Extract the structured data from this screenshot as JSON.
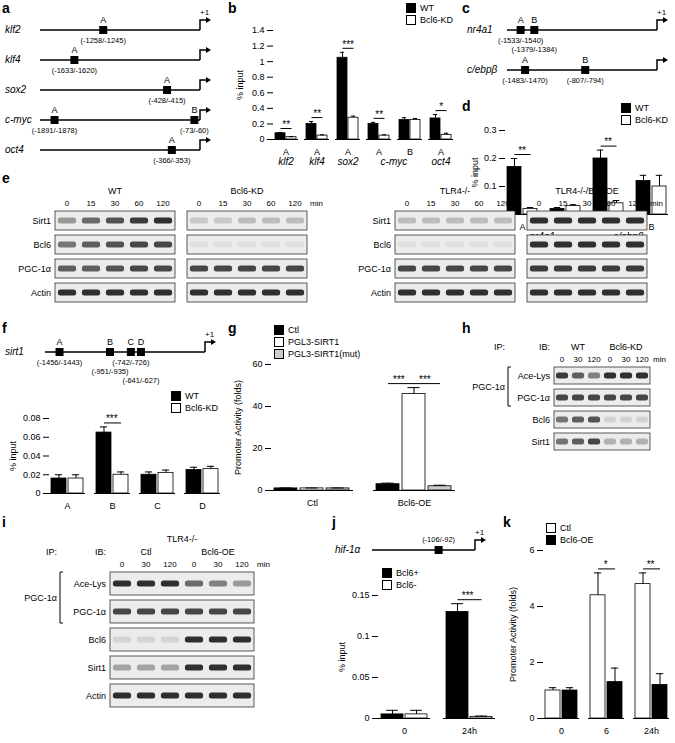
{
  "panel_labels": [
    "a",
    "b",
    "c",
    "d",
    "e",
    "f",
    "g",
    "h",
    "i",
    "j",
    "k"
  ],
  "chart_data": [
    {
      "type": "bar",
      "categories": [
        "A",
        "A",
        "A",
        "A",
        "B",
        "A"
      ],
      "category_groups": [
        {
          "label": "klf2",
          "from": 0,
          "to": 0
        },
        {
          "label": "klf4",
          "from": 1,
          "to": 1
        },
        {
          "label": "sox2",
          "from": 2,
          "to": 2
        },
        {
          "label": "c-myc",
          "from": 3,
          "to": 4
        },
        {
          "label": "oct4",
          "from": 5,
          "to": 5
        }
      ],
      "y_label": "% input",
      "ylim": [
        0,
        1.4
      ],
      "yticks": [
        0,
        0.2,
        0.4,
        0.6,
        0.8,
        1,
        1.2,
        1.4
      ],
      "series": [
        {
          "name": "WT",
          "color": "#000000",
          "values": [
            0.08,
            0.2,
            1.05,
            0.2,
            0.25,
            0.27
          ],
          "errors": [
            0.01,
            0.03,
            0.07,
            0.02,
            0.03,
            0.05
          ]
        },
        {
          "name": "Bcl6-KD",
          "color": "#ffffff",
          "values": [
            0.03,
            0.05,
            0.28,
            0.05,
            0.25,
            0.06
          ],
          "errors": [
            0.005,
            0.01,
            0.02,
            0.01,
            0.02,
            0.02
          ]
        }
      ],
      "significance": [
        {
          "category": 0,
          "from": 0,
          "to": 1,
          "label": "**"
        },
        {
          "category": 1,
          "from": 0,
          "to": 1,
          "label": "**"
        },
        {
          "category": 2,
          "from": 0,
          "to": 1,
          "label": "***"
        },
        {
          "category": 3,
          "from": 0,
          "to": 1,
          "label": "**"
        },
        {
          "category": 5,
          "from": 0,
          "to": 1,
          "label": "*"
        }
      ],
      "legend": "top-right"
    },
    {
      "type": "bar",
      "categories": [
        "A",
        "B",
        "A",
        "B"
      ],
      "category_groups": [
        {
          "label": "nr4a1",
          "from": 0,
          "to": 1
        },
        {
          "label": "c/ebpβ",
          "from": 2,
          "to": 3
        }
      ],
      "y_label": "% input",
      "ylim": [
        0,
        0.3
      ],
      "yticks": [
        {
          "value": 0,
          "label": ".0"
        },
        0.1,
        0.2,
        0.3
      ],
      "series": [
        {
          "name": "WT",
          "color": "#000000",
          "values": [
            0.17,
            0.02,
            0.2,
            0.12
          ],
          "errors": [
            0.03,
            0.005,
            0.03,
            0.02
          ]
        },
        {
          "name": "Bcl6-KD",
          "color": "#ffffff",
          "values": [
            0.02,
            0.03,
            0.04,
            0.1
          ],
          "errors": [
            0.005,
            0.005,
            0.01,
            0.04
          ]
        }
      ],
      "significance": [
        {
          "category": 0,
          "from": 0,
          "to": 1,
          "label": "**"
        },
        {
          "category": 2,
          "from": 0,
          "to": 1,
          "label": "**"
        }
      ],
      "legend": "top-right"
    },
    {
      "type": "bar",
      "categories": [
        "A",
        "B",
        "C",
        "D"
      ],
      "y_label": "% input",
      "ylim": [
        0,
        0.08
      ],
      "yticks": [
        0,
        0.02,
        0.04,
        0.06,
        0.08
      ],
      "series": [
        {
          "name": "WT",
          "color": "#000000",
          "values": [
            0.016,
            0.065,
            0.02,
            0.025
          ],
          "errors": [
            0.004,
            0.006,
            0.003,
            0.003
          ]
        },
        {
          "name": "Bcl6-KD",
          "color": "#ffffff",
          "values": [
            0.016,
            0.02,
            0.022,
            0.026
          ],
          "errors": [
            0.004,
            0.003,
            0.003,
            0.003
          ]
        }
      ],
      "significance": [
        {
          "category": 1,
          "from": 0,
          "to": 1,
          "label": "***"
        }
      ],
      "legend": "top-right"
    },
    {
      "type": "bar",
      "categories": [
        "Ctl",
        "Bcl6-OE"
      ],
      "y_label": "Promoter Activity (folds)",
      "ylim": [
        0,
        60
      ],
      "yticks": [
        0,
        20,
        40,
        60
      ],
      "series": [
        {
          "name": "Ctl",
          "color": "#000000",
          "values": [
            1,
            3
          ],
          "errors": [
            0.2,
            0.5
          ]
        },
        {
          "name": "PGL3-SIRT1",
          "color": "#ffffff",
          "values": [
            1,
            46
          ],
          "errors": [
            0.2,
            3
          ]
        },
        {
          "name": "PGL3-SIRT1(mut)",
          "color": "#cccccc",
          "values": [
            1,
            2
          ],
          "errors": [
            0.2,
            0.5
          ]
        }
      ],
      "significance": [
        {
          "category": 1,
          "from": 0,
          "to": 1,
          "label": "***"
        },
        {
          "category": 1,
          "from": 1,
          "to": 2,
          "label": "***"
        }
      ],
      "legend": "top-left"
    },
    {
      "type": "bar",
      "categories": [
        "0",
        "24h"
      ],
      "y_label": "% input",
      "ylim": [
        0,
        0.15
      ],
      "yticks": [
        0,
        0.05,
        0.1,
        0.15
      ],
      "series": [
        {
          "name": "Bcl6+",
          "color": "#000000",
          "values": [
            0.005,
            0.13
          ],
          "errors": [
            0.005,
            0.01
          ]
        },
        {
          "name": "Bcl6-",
          "color": "#ffffff",
          "values": [
            0.005,
            0.002
          ],
          "errors": [
            0.005,
            0.001
          ]
        }
      ],
      "significance": [
        {
          "category": 1,
          "from": 0,
          "to": 1,
          "label": "***"
        }
      ],
      "legend": "top-left"
    },
    {
      "type": "bar",
      "categories": [
        "0",
        "6",
        "24h"
      ],
      "y_label": "Promoter Activity (folds)",
      "ylim": [
        0,
        6
      ],
      "yticks": [
        0,
        2,
        4,
        6
      ],
      "series": [
        {
          "name": "Ctl",
          "color": "#ffffff",
          "values": [
            1,
            4.4,
            4.8
          ],
          "errors": [
            0.1,
            0.8,
            0.4
          ]
        },
        {
          "name": "Bcl6-OE",
          "color": "#000000",
          "values": [
            1,
            1.3,
            1.2
          ],
          "errors": [
            0.1,
            0.5,
            0.4
          ]
        }
      ],
      "significance": [
        {
          "category": 1,
          "from": 0,
          "to": 1,
          "label": "*"
        },
        {
          "category": 2,
          "from": 0,
          "to": 1,
          "label": "**"
        }
      ],
      "legend": "top-left"
    }
  ],
  "diagrams": {
    "a": {
      "tss": "+1",
      "genes": [
        {
          "name": "klf2",
          "sites": [
            {
              "letter": "A",
              "label": "(-1258/-1245)",
              "position": -1258
            }
          ]
        },
        {
          "name": "klf4",
          "sites": [
            {
              "letter": "A",
              "label": "(-1633/-1620)",
              "position": -1633
            }
          ]
        },
        {
          "name": "sox2",
          "sites": [
            {
              "letter": "A",
              "label": "(-428/-415)",
              "position": -428
            }
          ]
        },
        {
          "name": "c-myc",
          "sites": [
            {
              "letter": "A",
              "label": "(-1891/-1878)",
              "position": -1891
            },
            {
              "letter": "B",
              "label": "(-73/-60)",
              "position": -73
            }
          ]
        },
        {
          "name": "oct4",
          "sites": [
            {
              "letter": "A",
              "label": "(-366/-353)",
              "position": -366
            }
          ]
        }
      ]
    },
    "c": {
      "tss": "+1",
      "genes": [
        {
          "name": "nr4a1",
          "sites": [
            {
              "letter": "A",
              "label": "(-1533/-1540)",
              "position": -1533
            },
            {
              "letter": "B",
              "label": "(-1379/-1384)",
              "position": -1379
            }
          ]
        },
        {
          "name": "c/ebpβ",
          "sites": [
            {
              "letter": "A",
              "label": "(-1483/-1470)",
              "position": -1483
            },
            {
              "letter": "B",
              "label": "(-807/-794)",
              "position": -807
            }
          ]
        }
      ]
    },
    "f": {
      "tss": "+1",
      "genes": [
        {
          "name": "sirt1",
          "sites": [
            {
              "letter": "A",
              "label": "(-1456/-1443)",
              "position": -1456
            },
            {
              "letter": "B",
              "label": "(-951/-935)",
              "position": -951
            },
            {
              "letter": "C",
              "label": "(-742/-726)",
              "position": -742
            },
            {
              "letter": "D",
              "label": "(-641/-627)",
              "position": -641
            }
          ]
        }
      ]
    },
    "j": {
      "tss": "+1",
      "genes": [
        {
          "name": "hif-1α",
          "sites": [
            {
              "label": "(-106/-92)",
              "position": -106
            }
          ]
        }
      ]
    },
    "e": [
      {
        "rows": [
          "Sirt1",
          "Bcl6",
          "PGC-1α",
          "Actin"
        ],
        "unit": "min",
        "groups": [
          {
            "label": "WT",
            "times": [
              0,
              15,
              30,
              60,
              120
            ],
            "bands": [
              [
                0.35,
                0.55,
                0.65,
                0.75,
                0.8
              ],
              [
                0.5,
                0.6,
                0.65,
                0.7,
                0.7
              ],
              [
                0.6,
                0.6,
                0.65,
                0.7,
                0.7
              ],
              [
                0.8,
                0.8,
                0.8,
                0.8,
                0.8
              ]
            ]
          },
          {
            "label": "Bcl6-KD",
            "times": [
              0,
              15,
              30,
              60,
              120
            ],
            "bands": [
              [
                0.15,
                0.15,
                0.2,
                0.2,
                0.2
              ],
              [
                0.05,
                0.05,
                0.05,
                0.05,
                0.05
              ],
              [
                0.7,
                0.7,
                0.7,
                0.7,
                0.7
              ],
              [
                0.8,
                0.8,
                0.8,
                0.8,
                0.8
              ]
            ]
          }
        ]
      },
      {
        "rows": [
          "Sirt1",
          "Bcl6",
          "PGC-1α",
          "Actin"
        ],
        "unit": "min",
        "groups": [
          {
            "label": "TLR4-/-",
            "times": [
              0,
              15,
              30,
              60,
              120
            ],
            "bands": [
              [
                0.2,
                0.2,
                0.2,
                0.2,
                0.2
              ],
              [
                0.05,
                0.05,
                0.05,
                0.05,
                0.05
              ],
              [
                0.7,
                0.7,
                0.7,
                0.7,
                0.7
              ],
              [
                0.8,
                0.8,
                0.8,
                0.8,
                0.8
              ]
            ]
          },
          {
            "label": "TLR4-/-/Bcl6OE",
            "times": [
              0,
              15,
              30,
              60,
              120
            ],
            "bands": [
              [
                0.8,
                0.8,
                0.8,
                0.8,
                0.8
              ],
              [
                0.8,
                0.8,
                0.8,
                0.8,
                0.8
              ],
              [
                0.75,
                0.75,
                0.75,
                0.75,
                0.75
              ],
              [
                0.8,
                0.8,
                0.8,
                0.8,
                0.8
              ]
            ]
          }
        ]
      }
    ],
    "h": {
      "ip_label": "IP:",
      "ib_label": "IB:",
      "ip_target": "PGC-1α",
      "ip_rows": [
        0,
        1
      ],
      "rows": [
        "Ace-Lys",
        "PGC-1α",
        "Bcl6",
        "Sirt1"
      ],
      "unit": "min",
      "groups": [
        {
          "label": "WT",
          "times": [
            0,
            30,
            120
          ],
          "bands": [
            [
              0.75,
              0.6,
              0.45
            ],
            [
              0.7,
              0.7,
              0.7
            ],
            [
              0.5,
              0.6,
              0.65
            ],
            [
              0.5,
              0.6,
              0.7
            ]
          ]
        },
        {
          "label": "Bcl6-KD",
          "times": [
            0,
            30,
            120
          ],
          "bands": [
            [
              0.8,
              0.8,
              0.8
            ],
            [
              0.7,
              0.7,
              0.7
            ],
            [
              0.1,
              0.1,
              0.1
            ],
            [
              0.25,
              0.25,
              0.25
            ]
          ]
        }
      ]
    },
    "i": {
      "title": "TLR4-/-",
      "ip_label": "IP:",
      "ib_label": "IB:",
      "ip_target": "PGC-1α",
      "ip_rows": [
        0,
        1
      ],
      "rows": [
        "Ace-Lys",
        "PGC-1α",
        "Bcl6",
        "Sirt1",
        "Actin"
      ],
      "unit": "min",
      "groups": [
        {
          "label": "Ctl",
          "times": [
            0,
            30,
            120
          ],
          "bands": [
            [
              0.8,
              0.8,
              0.8
            ],
            [
              0.7,
              0.7,
              0.7
            ],
            [
              0.1,
              0.1,
              0.1
            ],
            [
              0.3,
              0.3,
              0.3
            ],
            [
              0.8,
              0.8,
              0.8
            ]
          ]
        },
        {
          "label": "Bcl6-OE",
          "times": [
            0,
            30,
            120
          ],
          "bands": [
            [
              0.55,
              0.45,
              0.35
            ],
            [
              0.7,
              0.7,
              0.7
            ],
            [
              0.8,
              0.8,
              0.8
            ],
            [
              0.8,
              0.8,
              0.8
            ],
            [
              0.8,
              0.8,
              0.8
            ]
          ]
        }
      ]
    }
  }
}
